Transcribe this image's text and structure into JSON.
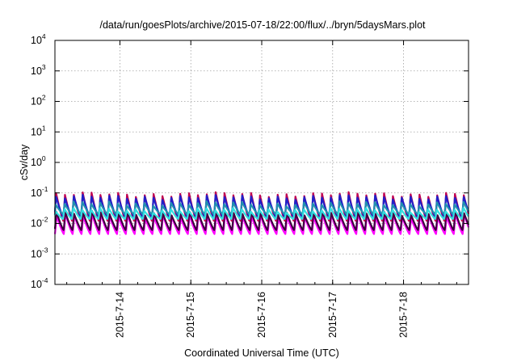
{
  "chart_data": {
    "type": "line",
    "title": "/data/run/goesPlots/archive/2015-07-18/22:00/flux/../bryn/5daysMars.plot",
    "xlabel": "Coordinated Universal Time (UTC)",
    "ylabel": "cSv/day",
    "y_scale": "log",
    "ylim": [
      0.0001,
      10000
    ],
    "y_ticks": [
      {
        "base": "10",
        "exp": "-4"
      },
      {
        "base": "10",
        "exp": "-3"
      },
      {
        "base": "10",
        "exp": "-2"
      },
      {
        "base": "10",
        "exp": "-1"
      },
      {
        "base": "10",
        "exp": "0"
      },
      {
        "base": "10",
        "exp": "1"
      },
      {
        "base": "10",
        "exp": "2"
      },
      {
        "base": "10",
        "exp": "3"
      },
      {
        "base": "10",
        "exp": "4"
      }
    ],
    "xlim": [
      "2015-07-13 02:00",
      "2015-07-18 22:00"
    ],
    "x_ticks": [
      "2015-7-14",
      "2015-7-15",
      "2015-7-16",
      "2015-7-17",
      "2015-7-18"
    ],
    "grid": true,
    "pattern": {
      "cycles_per_day": 8,
      "description": "repeating sawtooth: sharp rise then gradual decay"
    },
    "series": [
      {
        "color": "#ff00ff",
        "peak": 0.018,
        "trough": 0.0045,
        "phase": 0.0
      },
      {
        "color": "#400040",
        "peak": 0.022,
        "trough": 0.006,
        "phase": 0.02
      },
      {
        "color": "#c00050",
        "peak": 0.09,
        "trough": 0.012,
        "phase": 0.05
      },
      {
        "color": "#2020c8",
        "peak": 0.075,
        "trough": 0.016,
        "phase": 0.06
      },
      {
        "color": "#2090b0",
        "peak": 0.045,
        "trough": 0.02,
        "phase": 0.08
      },
      {
        "color": "#30e0e0",
        "peak": 0.028,
        "trough": 0.014,
        "phase": 0.1
      }
    ]
  }
}
